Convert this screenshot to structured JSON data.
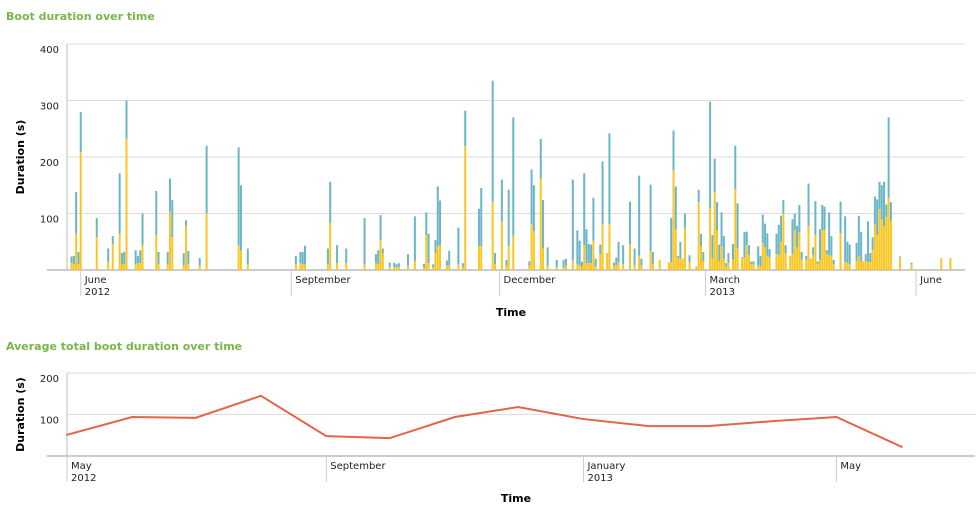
{
  "colors": {
    "title": "#7ab648",
    "lower": "#f9c623",
    "upper": "#6ab5c8",
    "line": "#e0664a",
    "grid": "#dddddd"
  },
  "chart_data": [
    {
      "type": "bar",
      "stacked": true,
      "title": "Boot duration over time",
      "xlabel": "Time",
      "ylabel": "Duration (s)",
      "xlim": [
        "2012-05-26",
        "2013-06-18"
      ],
      "ylim": [
        0,
        400
      ],
      "yticks": [
        100,
        200,
        300,
        400
      ],
      "xticks": [
        {
          "date": "2012-06-01",
          "label": "June",
          "sub": "2012"
        },
        {
          "date": "2012-09-01",
          "label": "September",
          "sub": ""
        },
        {
          "date": "2012-12-01",
          "label": "December",
          "sub": ""
        },
        {
          "date": "2013-03-01",
          "label": "March",
          "sub": "2013"
        },
        {
          "date": "2013-06-01",
          "label": "June",
          "sub": ""
        }
      ],
      "grid": true,
      "fields": [
        "date",
        "lower",
        "total"
      ],
      "bars": [
        [
          "2012-05-28",
          12,
          24
        ],
        [
          "2012-05-29",
          10,
          25
        ],
        [
          "2012-05-30",
          64,
          138
        ],
        [
          "2012-05-31",
          10,
          32
        ],
        [
          "2012-06-01",
          209,
          280
        ],
        [
          "2012-06-08",
          58,
          92
        ],
        [
          "2012-06-13",
          14,
          38
        ],
        [
          "2012-06-15",
          46,
          60
        ],
        [
          "2012-06-18",
          64,
          171
        ],
        [
          "2012-06-19",
          10,
          30
        ],
        [
          "2012-06-20",
          10,
          32
        ],
        [
          "2012-06-21",
          233,
          300
        ],
        [
          "2012-06-25",
          10,
          35
        ],
        [
          "2012-06-26",
          12,
          25
        ],
        [
          "2012-06-27",
          12,
          35
        ],
        [
          "2012-06-28",
          44,
          100
        ],
        [
          "2012-07-04",
          62,
          140
        ],
        [
          "2012-07-05",
          10,
          32
        ],
        [
          "2012-07-09",
          10,
          32
        ],
        [
          "2012-07-10",
          103,
          162
        ],
        [
          "2012-07-11",
          58,
          124
        ],
        [
          "2012-07-16",
          8,
          30
        ],
        [
          "2012-07-17",
          78,
          88
        ],
        [
          "2012-07-18",
          10,
          34
        ],
        [
          "2012-07-23",
          8,
          21
        ],
        [
          "2012-07-26",
          100,
          220
        ],
        [
          "2012-08-09",
          44,
          217
        ],
        [
          "2012-08-10",
          34,
          150
        ],
        [
          "2012-08-13",
          10,
          38
        ],
        [
          "2012-09-03",
          10,
          25
        ],
        [
          "2012-09-05",
          12,
          32
        ],
        [
          "2012-09-06",
          10,
          32
        ],
        [
          "2012-09-07",
          10,
          43
        ],
        [
          "2012-09-17",
          10,
          38
        ],
        [
          "2012-09-18",
          84,
          156
        ],
        [
          "2012-09-21",
          12,
          44
        ],
        [
          "2012-09-25",
          12,
          38
        ],
        [
          "2012-10-03",
          10,
          92
        ],
        [
          "2012-10-08",
          12,
          28
        ],
        [
          "2012-10-09",
          10,
          35
        ],
        [
          "2012-10-10",
          52,
          97
        ],
        [
          "2012-10-11",
          30,
          38
        ],
        [
          "2012-10-14",
          5,
          13
        ],
        [
          "2012-10-16",
          5,
          13
        ],
        [
          "2012-10-17",
          5,
          10
        ],
        [
          "2012-10-18",
          5,
          12
        ],
        [
          "2012-10-22",
          8,
          28
        ],
        [
          "2012-10-25",
          16,
          95
        ],
        [
          "2012-10-29",
          4,
          11
        ],
        [
          "2012-10-30",
          62,
          102
        ],
        [
          "2012-10-31",
          12,
          64
        ],
        [
          "2012-11-02",
          4,
          10
        ],
        [
          "2012-11-03",
          30,
          53
        ],
        [
          "2012-11-04",
          42,
          148
        ],
        [
          "2012-11-05",
          44,
          123
        ],
        [
          "2012-11-08",
          8,
          17
        ],
        [
          "2012-11-09",
          8,
          34
        ],
        [
          "2012-11-13",
          10,
          75
        ],
        [
          "2012-11-15",
          5,
          12
        ],
        [
          "2012-11-16",
          219,
          282
        ],
        [
          "2012-11-22",
          42,
          108
        ],
        [
          "2012-11-23",
          42,
          145
        ],
        [
          "2012-11-28",
          121,
          335
        ],
        [
          "2012-11-29",
          10,
          30
        ],
        [
          "2012-12-02",
          86,
          160
        ],
        [
          "2012-12-04",
          8,
          18
        ],
        [
          "2012-12-05",
          42,
          142
        ],
        [
          "2012-12-07",
          61,
          270
        ],
        [
          "2012-12-14",
          8,
          15
        ],
        [
          "2012-12-15",
          81,
          178
        ],
        [
          "2012-12-16",
          69,
          150
        ],
        [
          "2012-12-19",
          162,
          232
        ],
        [
          "2012-12-20",
          38,
          124
        ],
        [
          "2012-12-22",
          8,
          40
        ],
        [
          "2012-12-26",
          4,
          18
        ],
        [
          "2012-12-29",
          4,
          18
        ],
        [
          "2012-12-30",
          8,
          20
        ],
        [
          "2013-01-02",
          17,
          160
        ],
        [
          "2013-01-04",
          10,
          70
        ],
        [
          "2013-01-05",
          8,
          52
        ],
        [
          "2013-01-06",
          6,
          15
        ],
        [
          "2013-01-07",
          44,
          171
        ],
        [
          "2013-01-08",
          12,
          72
        ],
        [
          "2013-01-09",
          12,
          46
        ],
        [
          "2013-01-10",
          12,
          45
        ],
        [
          "2013-01-11",
          52,
          128
        ],
        [
          "2013-01-12",
          6,
          20
        ],
        [
          "2013-01-14",
          28,
          45
        ],
        [
          "2013-01-15",
          81,
          192
        ],
        [
          "2013-01-17",
          30,
          30
        ],
        [
          "2013-01-18",
          81,
          242
        ],
        [
          "2013-01-20",
          8,
          13
        ],
        [
          "2013-01-21",
          8,
          22
        ],
        [
          "2013-01-22",
          14,
          50
        ],
        [
          "2013-01-24",
          10,
          44
        ],
        [
          "2013-01-27",
          46,
          121
        ],
        [
          "2013-01-29",
          8,
          38
        ],
        [
          "2013-01-31",
          25,
          167
        ],
        [
          "2013-02-01",
          8,
          20
        ],
        [
          "2013-02-05",
          33,
          151
        ],
        [
          "2013-02-06",
          10,
          32
        ],
        [
          "2013-02-09",
          18,
          18
        ],
        [
          "2013-02-13",
          14,
          14
        ],
        [
          "2013-02-14",
          14,
          92
        ],
        [
          "2013-02-15",
          177,
          247
        ],
        [
          "2013-02-16",
          72,
          148
        ],
        [
          "2013-02-17",
          22,
          25
        ],
        [
          "2013-02-18",
          20,
          50
        ],
        [
          "2013-02-19",
          20,
          20
        ],
        [
          "2013-02-20",
          74,
          100
        ],
        [
          "2013-02-22",
          14,
          26
        ],
        [
          "2013-02-25",
          4,
          6
        ],
        [
          "2013-02-26",
          120,
          142
        ],
        [
          "2013-02-27",
          42,
          64
        ],
        [
          "2013-02-28",
          16,
          32
        ],
        [
          "2013-03-03",
          110,
          298
        ],
        [
          "2013-03-04",
          20,
          62
        ],
        [
          "2013-03-05",
          138,
          197
        ],
        [
          "2013-03-06",
          70,
          120
        ],
        [
          "2013-03-07",
          16,
          45
        ],
        [
          "2013-03-08",
          42,
          102
        ],
        [
          "2013-03-09",
          20,
          60
        ],
        [
          "2013-03-10",
          6,
          12
        ],
        [
          "2013-03-11",
          12,
          30
        ],
        [
          "2013-03-13",
          18,
          46
        ],
        [
          "2013-03-14",
          143,
          220
        ],
        [
          "2013-03-15",
          38,
          118
        ],
        [
          "2013-03-17",
          22,
          23
        ],
        [
          "2013-03-18",
          22,
          67
        ],
        [
          "2013-03-19",
          44,
          68
        ],
        [
          "2013-03-20",
          26,
          44
        ],
        [
          "2013-03-21",
          10,
          15
        ],
        [
          "2013-03-22",
          10,
          15
        ],
        [
          "2013-03-24",
          8,
          42
        ],
        [
          "2013-03-25",
          6,
          25
        ],
        [
          "2013-03-26",
          48,
          98
        ],
        [
          "2013-03-27",
          40,
          82
        ],
        [
          "2013-03-28",
          25,
          65
        ],
        [
          "2013-03-29",
          22,
          37
        ],
        [
          "2013-04-01",
          28,
          64
        ],
        [
          "2013-04-02",
          26,
          80
        ],
        [
          "2013-04-03",
          50,
          96
        ],
        [
          "2013-04-04",
          100,
          124
        ],
        [
          "2013-04-05",
          30,
          44
        ],
        [
          "2013-04-07",
          25,
          25
        ],
        [
          "2013-04-08",
          28,
          90
        ],
        [
          "2013-04-09",
          70,
          100
        ],
        [
          "2013-04-10",
          40,
          78
        ],
        [
          "2013-04-11",
          66,
          115
        ],
        [
          "2013-04-12",
          18,
          32
        ],
        [
          "2013-04-14",
          18,
          25
        ],
        [
          "2013-04-15",
          78,
          153
        ],
        [
          "2013-04-16",
          18,
          20
        ],
        [
          "2013-04-17",
          26,
          40
        ],
        [
          "2013-04-18",
          62,
          122
        ],
        [
          "2013-04-19",
          10,
          15
        ],
        [
          "2013-04-20",
          18,
          72
        ],
        [
          "2013-04-21",
          70,
          115
        ],
        [
          "2013-04-22",
          71,
          112
        ],
        [
          "2013-04-23",
          28,
          35
        ],
        [
          "2013-04-24",
          26,
          102
        ],
        [
          "2013-04-25",
          25,
          60
        ],
        [
          "2013-04-26",
          10,
          18
        ],
        [
          "2013-04-29",
          65,
          121
        ],
        [
          "2013-05-01",
          14,
          95
        ],
        [
          "2013-05-02",
          12,
          50
        ],
        [
          "2013-05-03",
          10,
          45
        ],
        [
          "2013-05-06",
          16,
          48
        ],
        [
          "2013-05-07",
          24,
          96
        ],
        [
          "2013-05-08",
          16,
          67
        ],
        [
          "2013-05-09",
          16,
          16
        ],
        [
          "2013-05-10",
          16,
          28
        ],
        [
          "2013-05-11",
          14,
          86
        ],
        [
          "2013-05-12",
          14,
          30
        ],
        [
          "2013-05-13",
          35,
          58
        ],
        [
          "2013-05-14",
          80,
          130
        ],
        [
          "2013-05-15",
          62,
          125
        ],
        [
          "2013-05-16",
          108,
          156
        ],
        [
          "2013-05-17",
          90,
          150
        ],
        [
          "2013-05-18",
          78,
          156
        ],
        [
          "2013-05-19",
          94,
          116
        ],
        [
          "2013-05-20",
          128,
          270
        ],
        [
          "2013-05-21",
          87,
          120
        ],
        [
          "2013-05-25",
          22,
          24
        ],
        [
          "2013-05-30",
          10,
          13
        ],
        [
          "2013-06-12",
          20,
          21
        ],
        [
          "2013-06-16",
          20,
          21
        ]
      ]
    },
    {
      "type": "line",
      "title": "Average total boot duration over time",
      "xlabel": "Time",
      "ylabel": "Duration (s)",
      "xlim": [
        "2012-05-01",
        "2013-07-01"
      ],
      "ylim": [
        0,
        200
      ],
      "yticks": [
        100,
        200
      ],
      "xticks": [
        {
          "date": "2012-05-01",
          "label": "May",
          "sub": "2012"
        },
        {
          "date": "2012-09-01",
          "label": "September",
          "sub": ""
        },
        {
          "date": "2013-01-01",
          "label": "January",
          "sub": "2013"
        },
        {
          "date": "2013-05-01",
          "label": "May",
          "sub": ""
        }
      ],
      "grid": true,
      "x": [
        "2012-05-01",
        "2012-06-01",
        "2012-07-01",
        "2012-08-01",
        "2012-09-01",
        "2012-10-01",
        "2012-11-01",
        "2012-12-01",
        "2013-01-01",
        "2013-02-01",
        "2013-03-01",
        "2013-04-01",
        "2013-05-01",
        "2013-06-01"
      ],
      "y": [
        51,
        94,
        92,
        145,
        48,
        43,
        94,
        118,
        89,
        72,
        72,
        84,
        94,
        22
      ]
    }
  ]
}
